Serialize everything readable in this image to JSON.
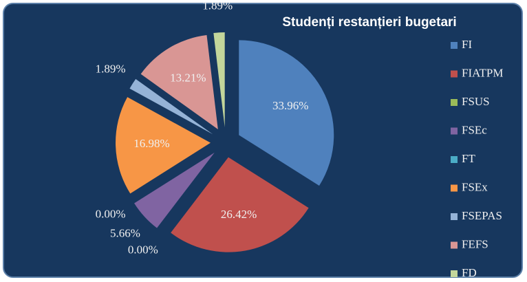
{
  "chart_data": {
    "type": "pie",
    "title": "Studenți restanțieri bugetari",
    "categories": [
      "FI",
      "FIATPM",
      "FSUS",
      "FSEc",
      "FT",
      "FSEx",
      "FSEPAS",
      "FEFS",
      "FD"
    ],
    "values": [
      33.96,
      26.42,
      0,
      5.66,
      0,
      16.98,
      1.89,
      13.21,
      1.89
    ],
    "value_labels": [
      "33.96%",
      "26.42%",
      "0.00%",
      "5.66%",
      "0.00%",
      "16.98%",
      "1.89%",
      "13.21%",
      "1.89%"
    ],
    "colors": [
      "#4f81bd",
      "#c0504d",
      "#9bbb59",
      "#8064a2",
      "#4bacc6",
      "#f79646",
      "#95b3d7",
      "#d99694",
      "#c3d69b"
    ],
    "legend": "right"
  }
}
